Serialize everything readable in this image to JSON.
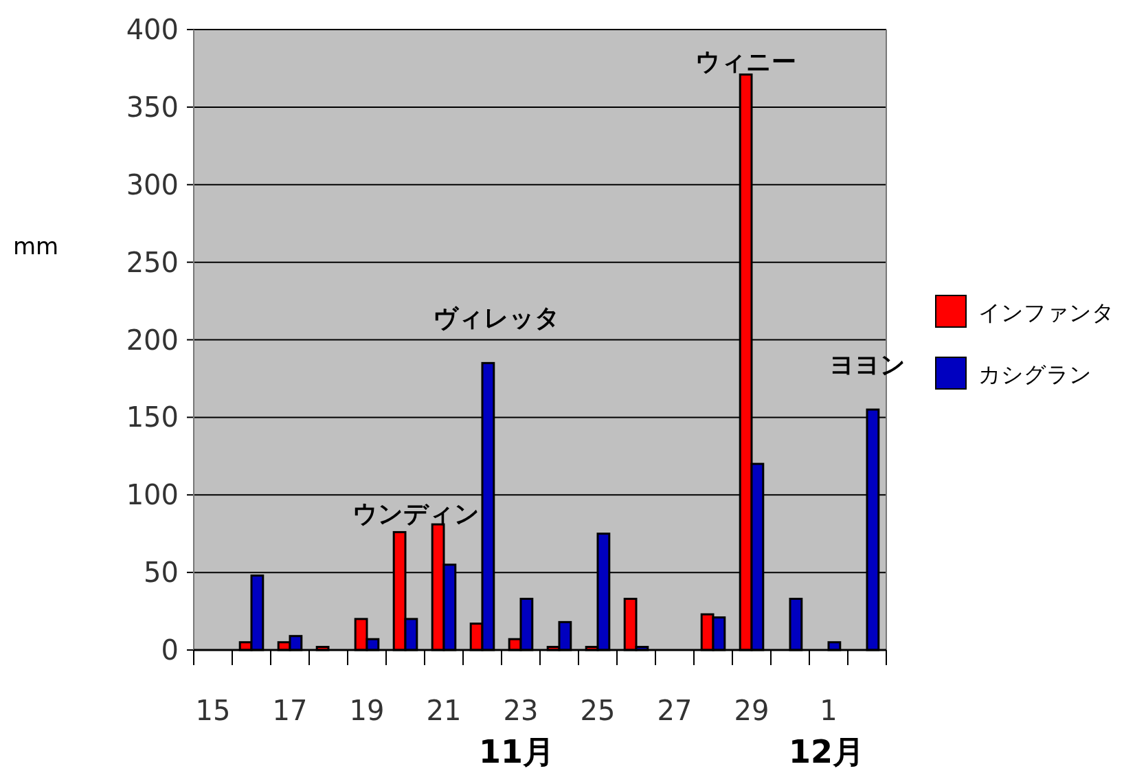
{
  "chart_data": {
    "type": "bar",
    "ylabel": "mm",
    "categories": [
      "15",
      null,
      "17",
      null,
      "19",
      null,
      "21",
      null,
      "23",
      null,
      "25",
      null,
      "27",
      null,
      "29",
      null,
      "1",
      null
    ],
    "series": [
      {
        "name": "インファンタ",
        "color": "#ff0000",
        "values": [
          0,
          5,
          5,
          2,
          20,
          76,
          81,
          17,
          7,
          2,
          2,
          33,
          0,
          23,
          371,
          0,
          0,
          0
        ]
      },
      {
        "name": "カシグラン",
        "color": "#0000c0",
        "values": [
          0,
          48,
          9,
          0,
          7,
          20,
          55,
          185,
          33,
          18,
          75,
          2,
          0,
          21,
          120,
          33,
          5,
          155
        ]
      }
    ],
    "ylim": [
      0,
      400
    ],
    "yticks": [
      0,
      50,
      100,
      150,
      200,
      250,
      300,
      350,
      400
    ],
    "grid": "y",
    "legend": "right",
    "annotations": [
      "ウンディン",
      "ヴィレッタ",
      "ウィニー",
      "ヨヨン",
      "11月",
      "12月"
    ]
  }
}
